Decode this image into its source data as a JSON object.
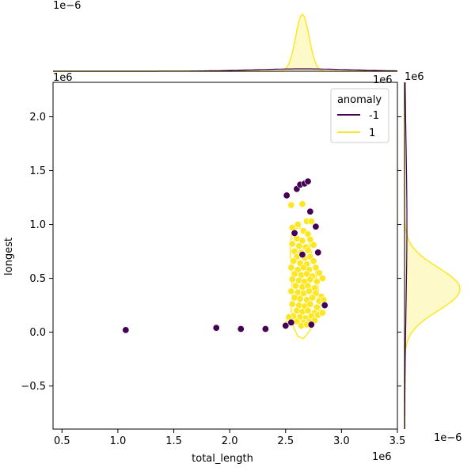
{
  "chart_data": {
    "type": "scatter",
    "xlabel": "total_length",
    "ylabel": "longest",
    "x_multiplier": "1e6",
    "y_multiplier": "1e6",
    "top_marginal_multiplier": "1e−6",
    "right_marginal_multiplier": "1e−6",
    "xlim": [
      0.42,
      3.5
    ],
    "ylim": [
      -0.9,
      2.32
    ],
    "x_ticks": [
      0.5,
      1.0,
      1.5,
      2.0,
      2.5,
      3.0,
      3.5
    ],
    "x_tick_labels": [
      "0.5",
      "1.0",
      "1.5",
      "2.0",
      "2.5",
      "3.0",
      "3.5"
    ],
    "y_ticks": [
      -0.5,
      0.0,
      0.5,
      1.0,
      1.5,
      2.0
    ],
    "y_tick_labels": [
      "−0.5",
      "0.0",
      "0.5",
      "1.0",
      "1.5",
      "2.0"
    ],
    "grid": false,
    "legend": {
      "title": "anomaly",
      "placement": "top-right",
      "entries": [
        {
          "label": "-1",
          "color": "#440154"
        },
        {
          "label": "1",
          "color": "#fde725"
        }
      ]
    },
    "series": [
      {
        "name": "-1",
        "color": "#440154",
        "points": [
          [
            1.07,
            0.02
          ],
          [
            1.88,
            0.04
          ],
          [
            2.1,
            0.03
          ],
          [
            2.32,
            0.03
          ],
          [
            2.5,
            0.06
          ],
          [
            2.55,
            0.09
          ],
          [
            2.51,
            1.27
          ],
          [
            2.6,
            1.33
          ],
          [
            2.63,
            1.37
          ],
          [
            2.67,
            1.38
          ],
          [
            2.7,
            1.4
          ],
          [
            2.72,
            1.12
          ],
          [
            2.58,
            0.92
          ],
          [
            2.77,
            0.98
          ],
          [
            2.79,
            0.74
          ],
          [
            2.85,
            0.25
          ],
          [
            2.73,
            0.07
          ],
          [
            2.65,
            0.72
          ]
        ]
      },
      {
        "name": "1",
        "color": "#fde725",
        "points": [
          [
            2.55,
            1.18
          ],
          [
            2.65,
            1.19
          ],
          [
            2.56,
            0.97
          ],
          [
            2.61,
            1.0
          ],
          [
            2.69,
            1.03
          ],
          [
            2.73,
            1.03
          ],
          [
            2.66,
            0.94
          ],
          [
            2.7,
            0.91
          ],
          [
            2.6,
            0.87
          ],
          [
            2.65,
            0.85
          ],
          [
            2.72,
            0.86
          ],
          [
            2.56,
            0.82
          ],
          [
            2.62,
            0.8
          ],
          [
            2.68,
            0.79
          ],
          [
            2.75,
            0.81
          ],
          [
            2.58,
            0.75
          ],
          [
            2.64,
            0.74
          ],
          [
            2.7,
            0.76
          ],
          [
            2.6,
            0.7
          ],
          [
            2.67,
            0.69
          ],
          [
            2.72,
            0.7
          ],
          [
            2.57,
            0.66
          ],
          [
            2.63,
            0.64
          ],
          [
            2.69,
            0.63
          ],
          [
            2.75,
            0.66
          ],
          [
            2.55,
            0.6
          ],
          [
            2.61,
            0.58
          ],
          [
            2.66,
            0.6
          ],
          [
            2.71,
            0.58
          ],
          [
            2.77,
            0.6
          ],
          [
            2.58,
            0.54
          ],
          [
            2.64,
            0.53
          ],
          [
            2.69,
            0.54
          ],
          [
            2.74,
            0.52
          ],
          [
            2.8,
            0.55
          ],
          [
            2.56,
            0.49
          ],
          [
            2.62,
            0.48
          ],
          [
            2.67,
            0.47
          ],
          [
            2.72,
            0.49
          ],
          [
            2.78,
            0.47
          ],
          [
            2.83,
            0.5
          ],
          [
            2.59,
            0.43
          ],
          [
            2.65,
            0.42
          ],
          [
            2.7,
            0.43
          ],
          [
            2.76,
            0.41
          ],
          [
            2.55,
            0.38
          ],
          [
            2.61,
            0.37
          ],
          [
            2.66,
            0.36
          ],
          [
            2.71,
            0.38
          ],
          [
            2.77,
            0.36
          ],
          [
            2.82,
            0.33
          ],
          [
            2.58,
            0.32
          ],
          [
            2.63,
            0.31
          ],
          [
            2.69,
            0.3
          ],
          [
            2.74,
            0.32
          ],
          [
            2.8,
            0.29
          ],
          [
            2.56,
            0.26
          ],
          [
            2.62,
            0.25
          ],
          [
            2.67,
            0.24
          ],
          [
            2.72,
            0.26
          ],
          [
            2.78,
            0.23
          ],
          [
            2.6,
            0.2
          ],
          [
            2.65,
            0.19
          ],
          [
            2.7,
            0.2
          ],
          [
            2.76,
            0.18
          ],
          [
            2.57,
            0.15
          ],
          [
            2.63,
            0.14
          ],
          [
            2.68,
            0.13
          ],
          [
            2.73,
            0.15
          ],
          [
            2.79,
            0.16
          ],
          [
            2.6,
            0.1
          ],
          [
            2.66,
            0.09
          ],
          [
            2.71,
            0.1
          ],
          [
            2.76,
            0.11
          ],
          [
            2.64,
            0.06
          ],
          [
            2.69,
            0.07
          ],
          [
            2.53,
            0.14
          ],
          [
            2.52,
            0.08
          ],
          [
            2.84,
            0.3
          ],
          [
            2.83,
            0.18
          ]
        ]
      }
    ],
    "top_marginal_density": {
      "series_1_peak_x": 2.65,
      "series_1_sigma": 0.06,
      "series_minus1_peak_x": 2.65,
      "series_minus1_sigma": 0.45
    },
    "right_marginal_density": {
      "series_1_peak_y": 0.4,
      "series_1_sigma": 0.2,
      "series_minus1_peak_y": 1.0,
      "series_minus1_sigma": 0.8
    }
  }
}
